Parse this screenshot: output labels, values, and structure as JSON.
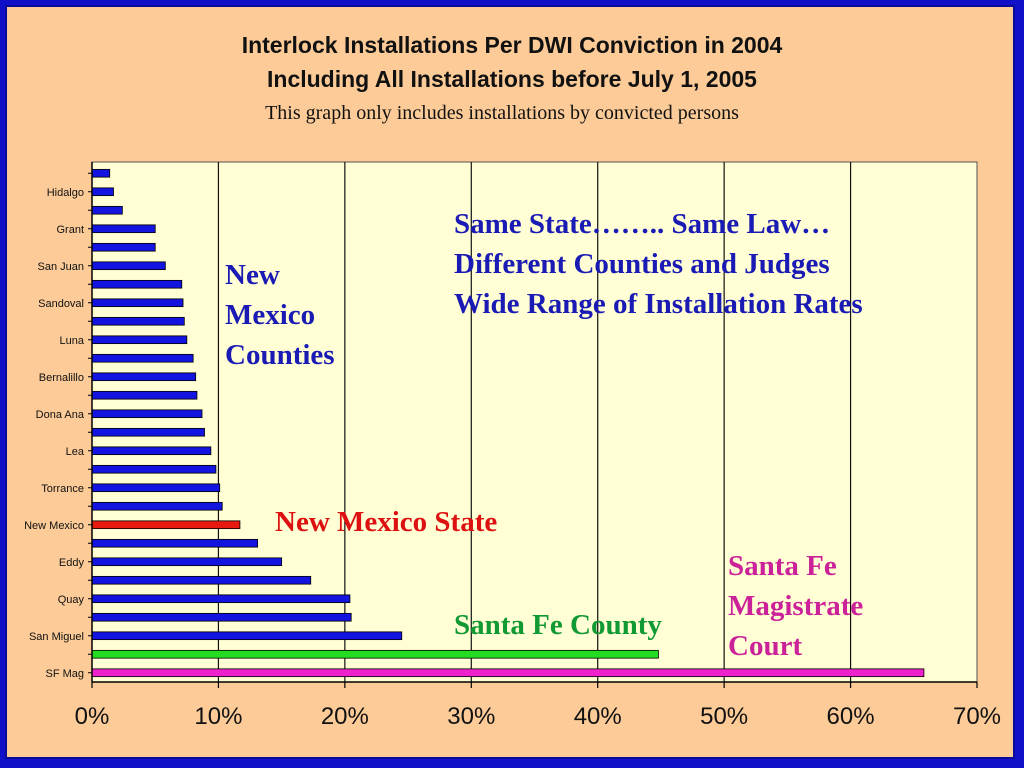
{
  "colors": {
    "background": "#fccb98",
    "frame": "#1010c8",
    "plot_area": "#fffed4",
    "county_bar": "#1414e0",
    "state_bar": "#e81a10",
    "santa_fe_county_bar": "#22dd22",
    "magistrate_bar": "#ee22cc",
    "callout_blue": "#1a1ab4",
    "callout_red": "#dd1111",
    "callout_green": "#119933",
    "callout_magenta": "#cc2299"
  },
  "chart_data": {
    "type": "bar",
    "orientation": "horizontal",
    "title": "Interlock Installations Per DWI Conviction in 2004",
    "title_line2": "Including All Installations before July 1, 2005",
    "subtitle": "This graph only includes installations by convicted persons",
    "xlim": [
      0,
      70
    ],
    "x_ticks": [
      "0%",
      "10%",
      "20%",
      "30%",
      "40%",
      "50%",
      "60%",
      "70%"
    ],
    "x_tick_values": [
      0,
      10,
      20,
      30,
      40,
      50,
      60,
      70
    ],
    "grid": "vertical major gridlines",
    "categories": [
      "",
      "Hidalgo",
      "",
      "Grant",
      "",
      "San Juan",
      "",
      "Sandoval",
      "",
      "Luna",
      "",
      "Bernalillo",
      "",
      "Dona Ana",
      "",
      "Lea",
      "",
      "Torrance",
      "",
      "New  Mexico",
      "",
      "Eddy",
      "",
      "Quay",
      "",
      "San Miguel",
      "",
      "SF Mag"
    ],
    "values": [
      1.4,
      1.7,
      2.4,
      5.0,
      5.0,
      5.8,
      7.1,
      7.2,
      7.3,
      7.5,
      8.0,
      8.2,
      8.3,
      8.7,
      8.9,
      9.4,
      9.8,
      10.1,
      10.3,
      11.7,
      13.1,
      15.0,
      17.3,
      20.4,
      20.5,
      24.5,
      44.8,
      65.8
    ],
    "bar_colors": [
      "county",
      "county",
      "county",
      "county",
      "county",
      "county",
      "county",
      "county",
      "county",
      "county",
      "county",
      "county",
      "county",
      "county",
      "county",
      "county",
      "county",
      "county",
      "county",
      "state",
      "county",
      "county",
      "county",
      "county",
      "county",
      "county",
      "santa_fe_county",
      "magistrate"
    ],
    "annotations": [
      {
        "lines": [
          "Same State……..   Same Law…",
          "Different Counties and  Judges",
          "Wide Range of Installation Rates"
        ],
        "color": "callout_blue"
      },
      {
        "lines": [
          "New",
          "Mexico",
          "Counties"
        ],
        "color": "callout_blue"
      },
      {
        "lines": [
          "New Mexico State"
        ],
        "color": "callout_red"
      },
      {
        "lines": [
          "Santa Fe County"
        ],
        "color": "callout_green"
      },
      {
        "lines": [
          "Santa Fe",
          "Magistrate",
          "Court"
        ],
        "color": "callout_magenta"
      }
    ]
  }
}
